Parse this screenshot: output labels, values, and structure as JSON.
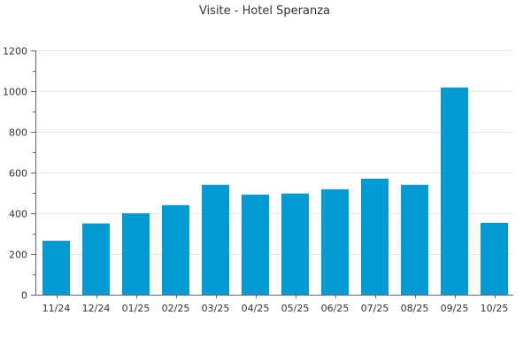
{
  "chart_data": {
    "type": "bar",
    "title": "Visite - Hotel Speranza",
    "xlabel": "",
    "ylabel": "",
    "categories": [
      "11/24",
      "12/24",
      "01/25",
      "02/25",
      "03/25",
      "04/25",
      "05/25",
      "06/25",
      "07/25",
      "08/25",
      "09/25",
      "10/25"
    ],
    "values": [
      265,
      350,
      400,
      440,
      540,
      492,
      497,
      518,
      570,
      540,
      1018,
      353
    ],
    "ylim": [
      0,
      1200
    ],
    "yticks": [
      0,
      200,
      400,
      600,
      800,
      1000,
      1200
    ],
    "grid": true,
    "legend": "none",
    "bar_color": "#0399d4"
  }
}
